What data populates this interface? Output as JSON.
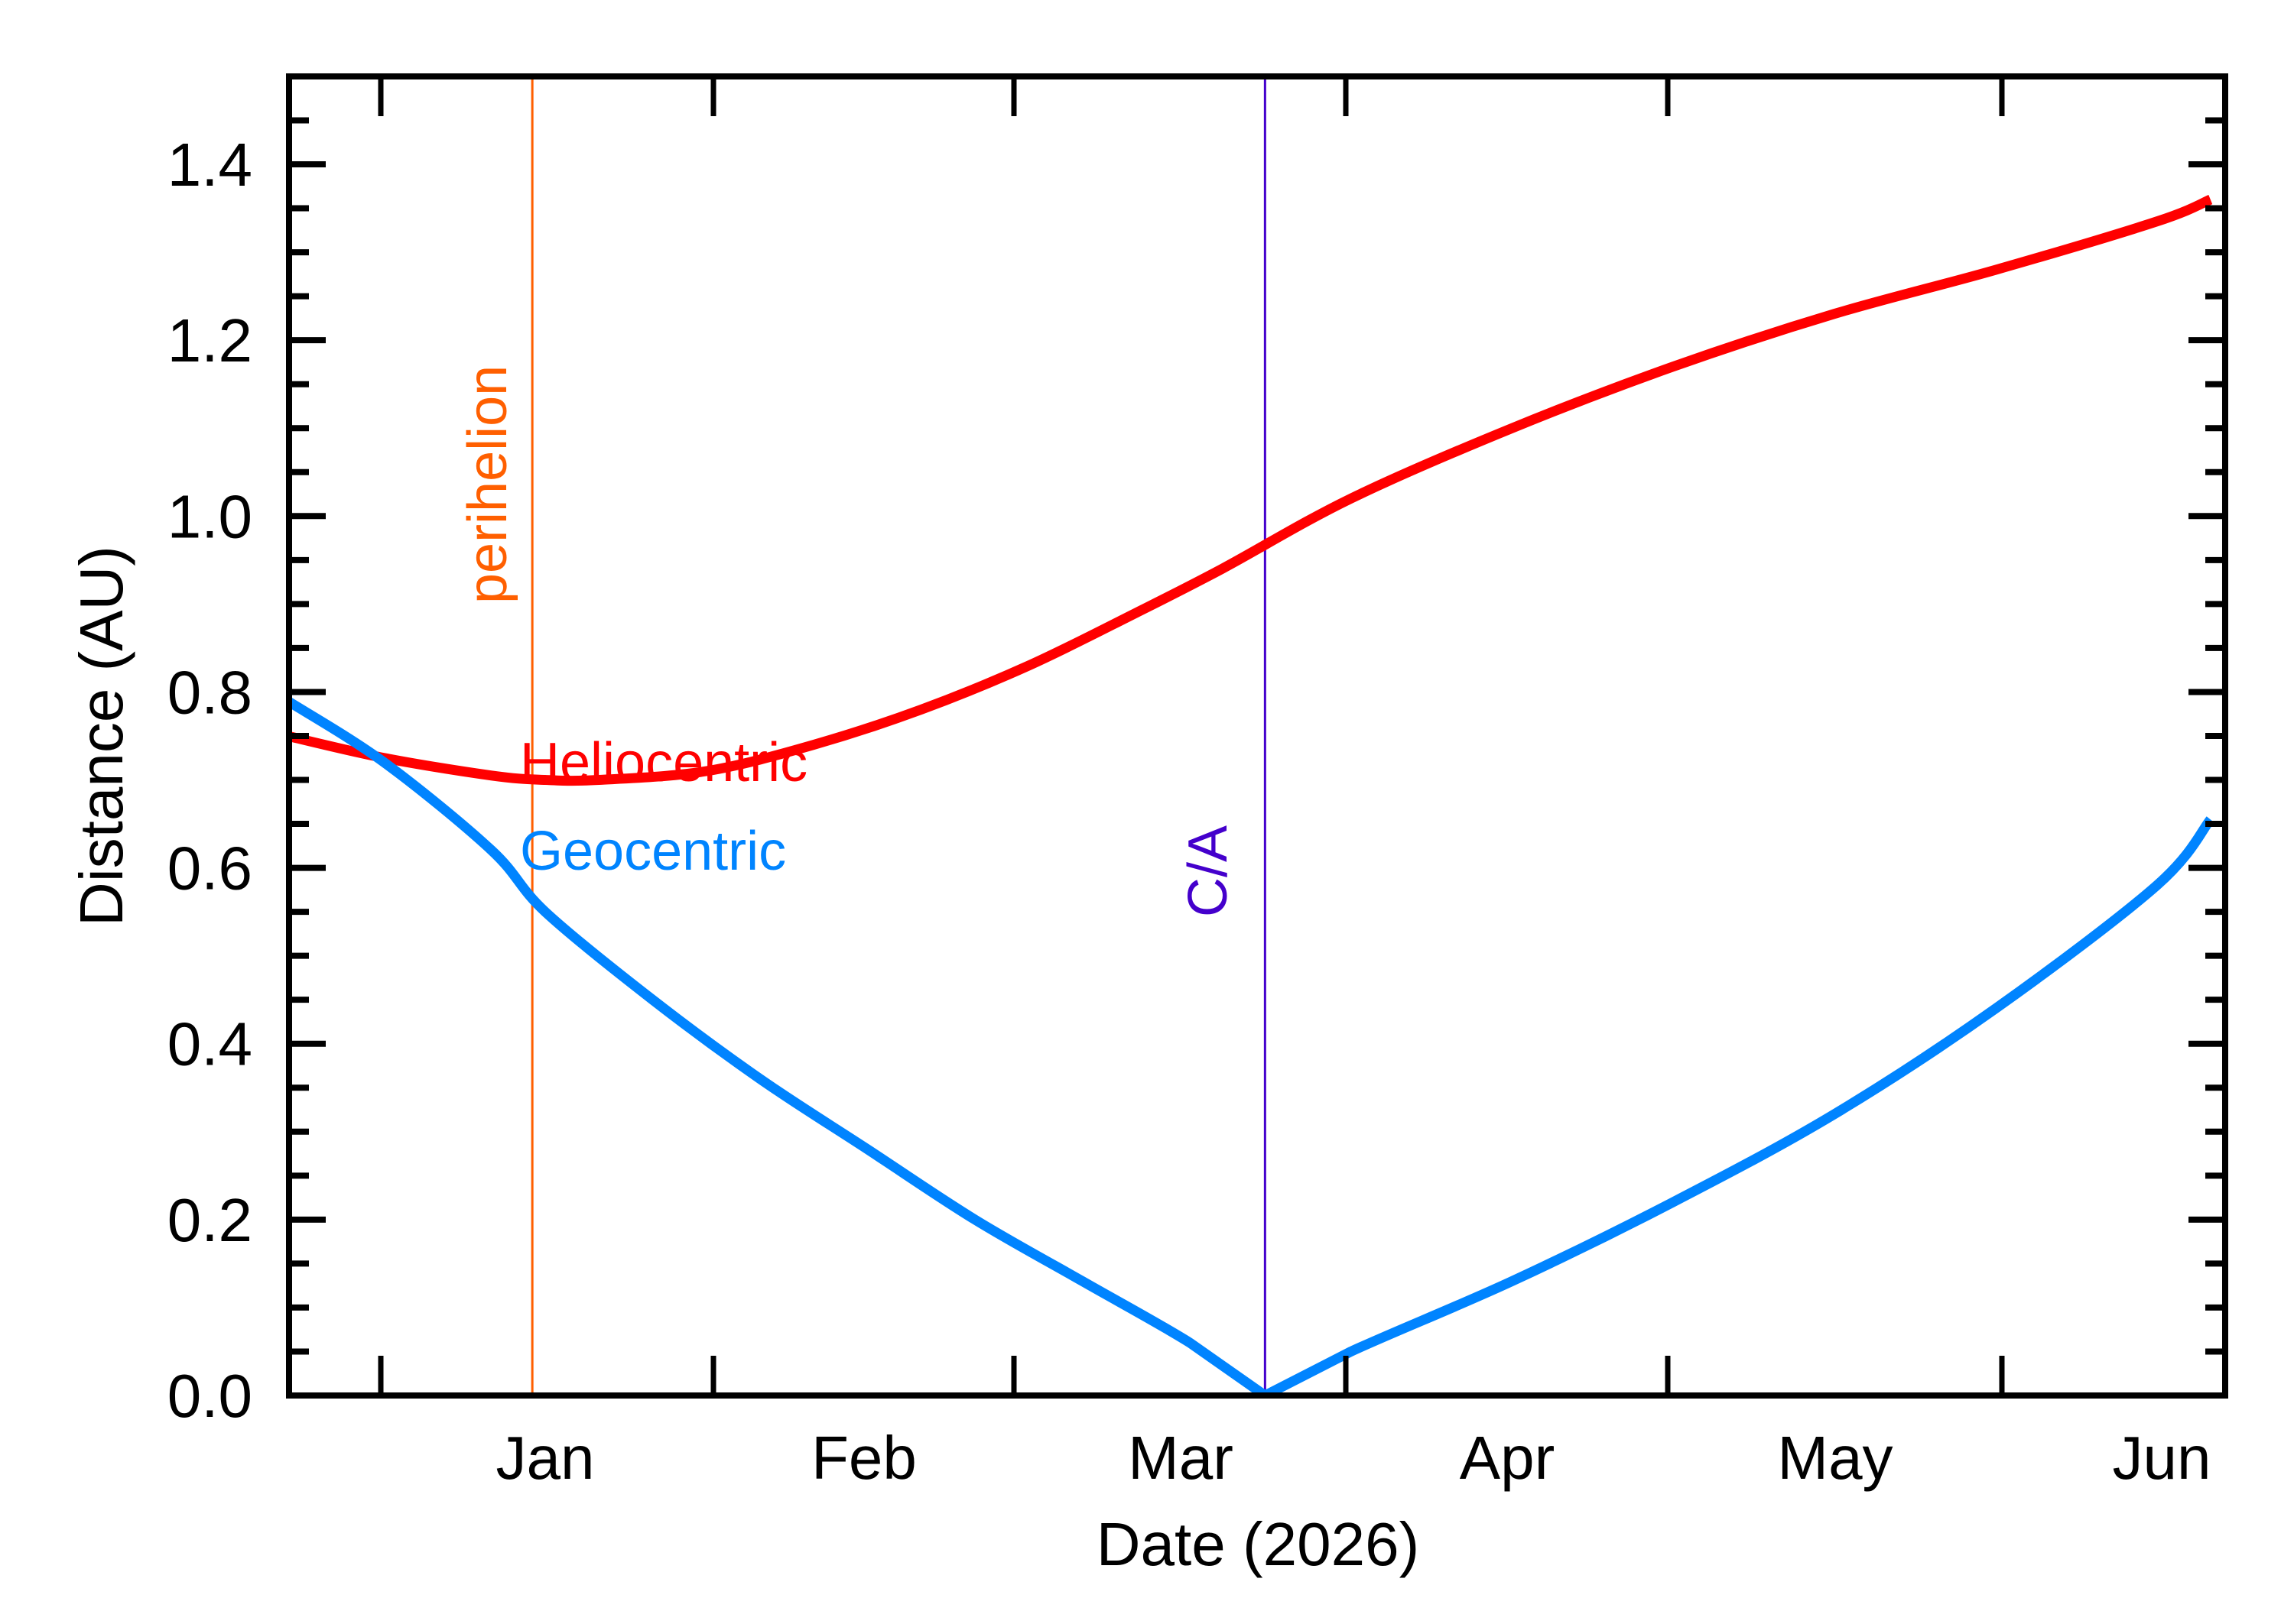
{
  "chart_data": {
    "type": "line",
    "title": "",
    "xlabel": "Date (2026)",
    "ylabel": "Distance (AU)",
    "ylim": [
      0.0,
      1.5
    ],
    "yticks": [
      "0.0",
      "0.2",
      "0.4",
      "0.6",
      "0.8",
      "1.0",
      "1.2",
      "1.4"
    ],
    "ytick_values": [
      0.0,
      0.2,
      0.4,
      0.6,
      0.8,
      1.0,
      1.2,
      1.4
    ],
    "xtick_labels": [
      "Jan",
      "Feb",
      "Mar",
      "Apr",
      "May",
      "Jun"
    ],
    "grid": false,
    "x_units": "days from 2026-01-01 (approx.)",
    "xlim": [
      -24,
      155
    ],
    "series": [
      {
        "name": "Heliocentric",
        "color": "#FF0000",
        "x": [
          -24,
          -15,
          -5,
          0,
          5,
          15,
          25,
          35,
          45,
          55,
          63,
          75,
          90,
          105,
          120,
          135,
          150,
          155
        ],
        "values": [
          0.75,
          0.725,
          0.705,
          0.7,
          0.7,
          0.71,
          0.74,
          0.78,
          0.83,
          0.89,
          0.94,
          1.02,
          1.1,
          1.17,
          1.23,
          1.28,
          1.335,
          1.36
        ]
      },
      {
        "name": "Geocentric",
        "color": "#0084FF",
        "x": [
          -24,
          -15,
          -5,
          0,
          10,
          20,
          30,
          40,
          50,
          60,
          67,
          75,
          90,
          105,
          120,
          135,
          150,
          155
        ],
        "values": [
          0.79,
          0.72,
          0.62,
          0.55,
          0.45,
          0.36,
          0.28,
          0.2,
          0.13,
          0.06,
          0.0,
          0.05,
          0.13,
          0.22,
          0.32,
          0.44,
          0.58,
          0.655
        ]
      }
    ],
    "annotations": [
      {
        "label": "perihelion",
        "x": -1.2,
        "color": "#FF5F00",
        "orientation": "vertical"
      },
      {
        "label": "C/A",
        "x": 67,
        "color": "#4400CC",
        "orientation": "vertical"
      }
    ],
    "legend": [
      {
        "label": "Heliocentric",
        "color": "#FF0000"
      },
      {
        "label": "Geocentric",
        "color": "#0084FF"
      }
    ]
  }
}
